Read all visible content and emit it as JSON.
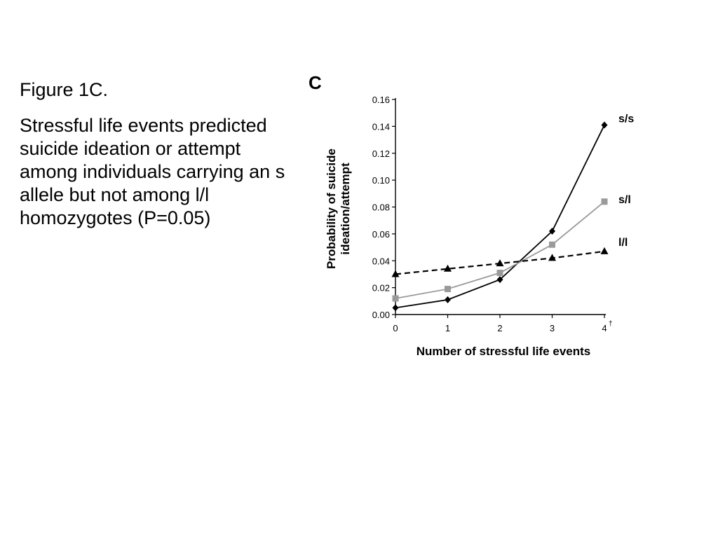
{
  "caption": {
    "heading": "Figure 1C.",
    "body": "Stressful life events predicted suicide ideation or attempt among individuals carrying an s allele but not among l/l homozygotes (P=0.05)"
  },
  "chart_data": {
    "type": "line",
    "panel_label": "C",
    "xlabel": "Number of stressful life events",
    "ylabel_line1": "Probability of suicide",
    "ylabel_line2": "ideation/attempt",
    "x": [
      0,
      1,
      2,
      3,
      4
    ],
    "x_tick_labels": [
      "0",
      "1",
      "2",
      "3",
      "4"
    ],
    "x_last_tick_suffix": "†",
    "y_ticks": [
      0.0,
      0.02,
      0.04,
      0.06,
      0.08,
      0.1,
      0.12,
      0.14,
      0.16
    ],
    "y_tick_labels": [
      "0.00",
      "0.02",
      "0.04",
      "0.06",
      "0.08",
      "0.10",
      "0.12",
      "0.14",
      "0.16"
    ],
    "xlim": [
      0,
      4
    ],
    "ylim": [
      0,
      0.16
    ],
    "grid": false,
    "series": [
      {
        "name": "s/s",
        "values": [
          0.005,
          0.011,
          0.026,
          0.062,
          0.141
        ],
        "color": "#000000",
        "marker": "diamond",
        "dash": "solid"
      },
      {
        "name": "s/l",
        "values": [
          0.012,
          0.019,
          0.031,
          0.052,
          0.084
        ],
        "color": "#9a9a9a",
        "marker": "square",
        "dash": "solid"
      },
      {
        "name": "l/l",
        "values": [
          0.03,
          0.034,
          0.038,
          0.042,
          0.047
        ],
        "color": "#000000",
        "marker": "triangle",
        "dash": "dashed"
      }
    ]
  }
}
